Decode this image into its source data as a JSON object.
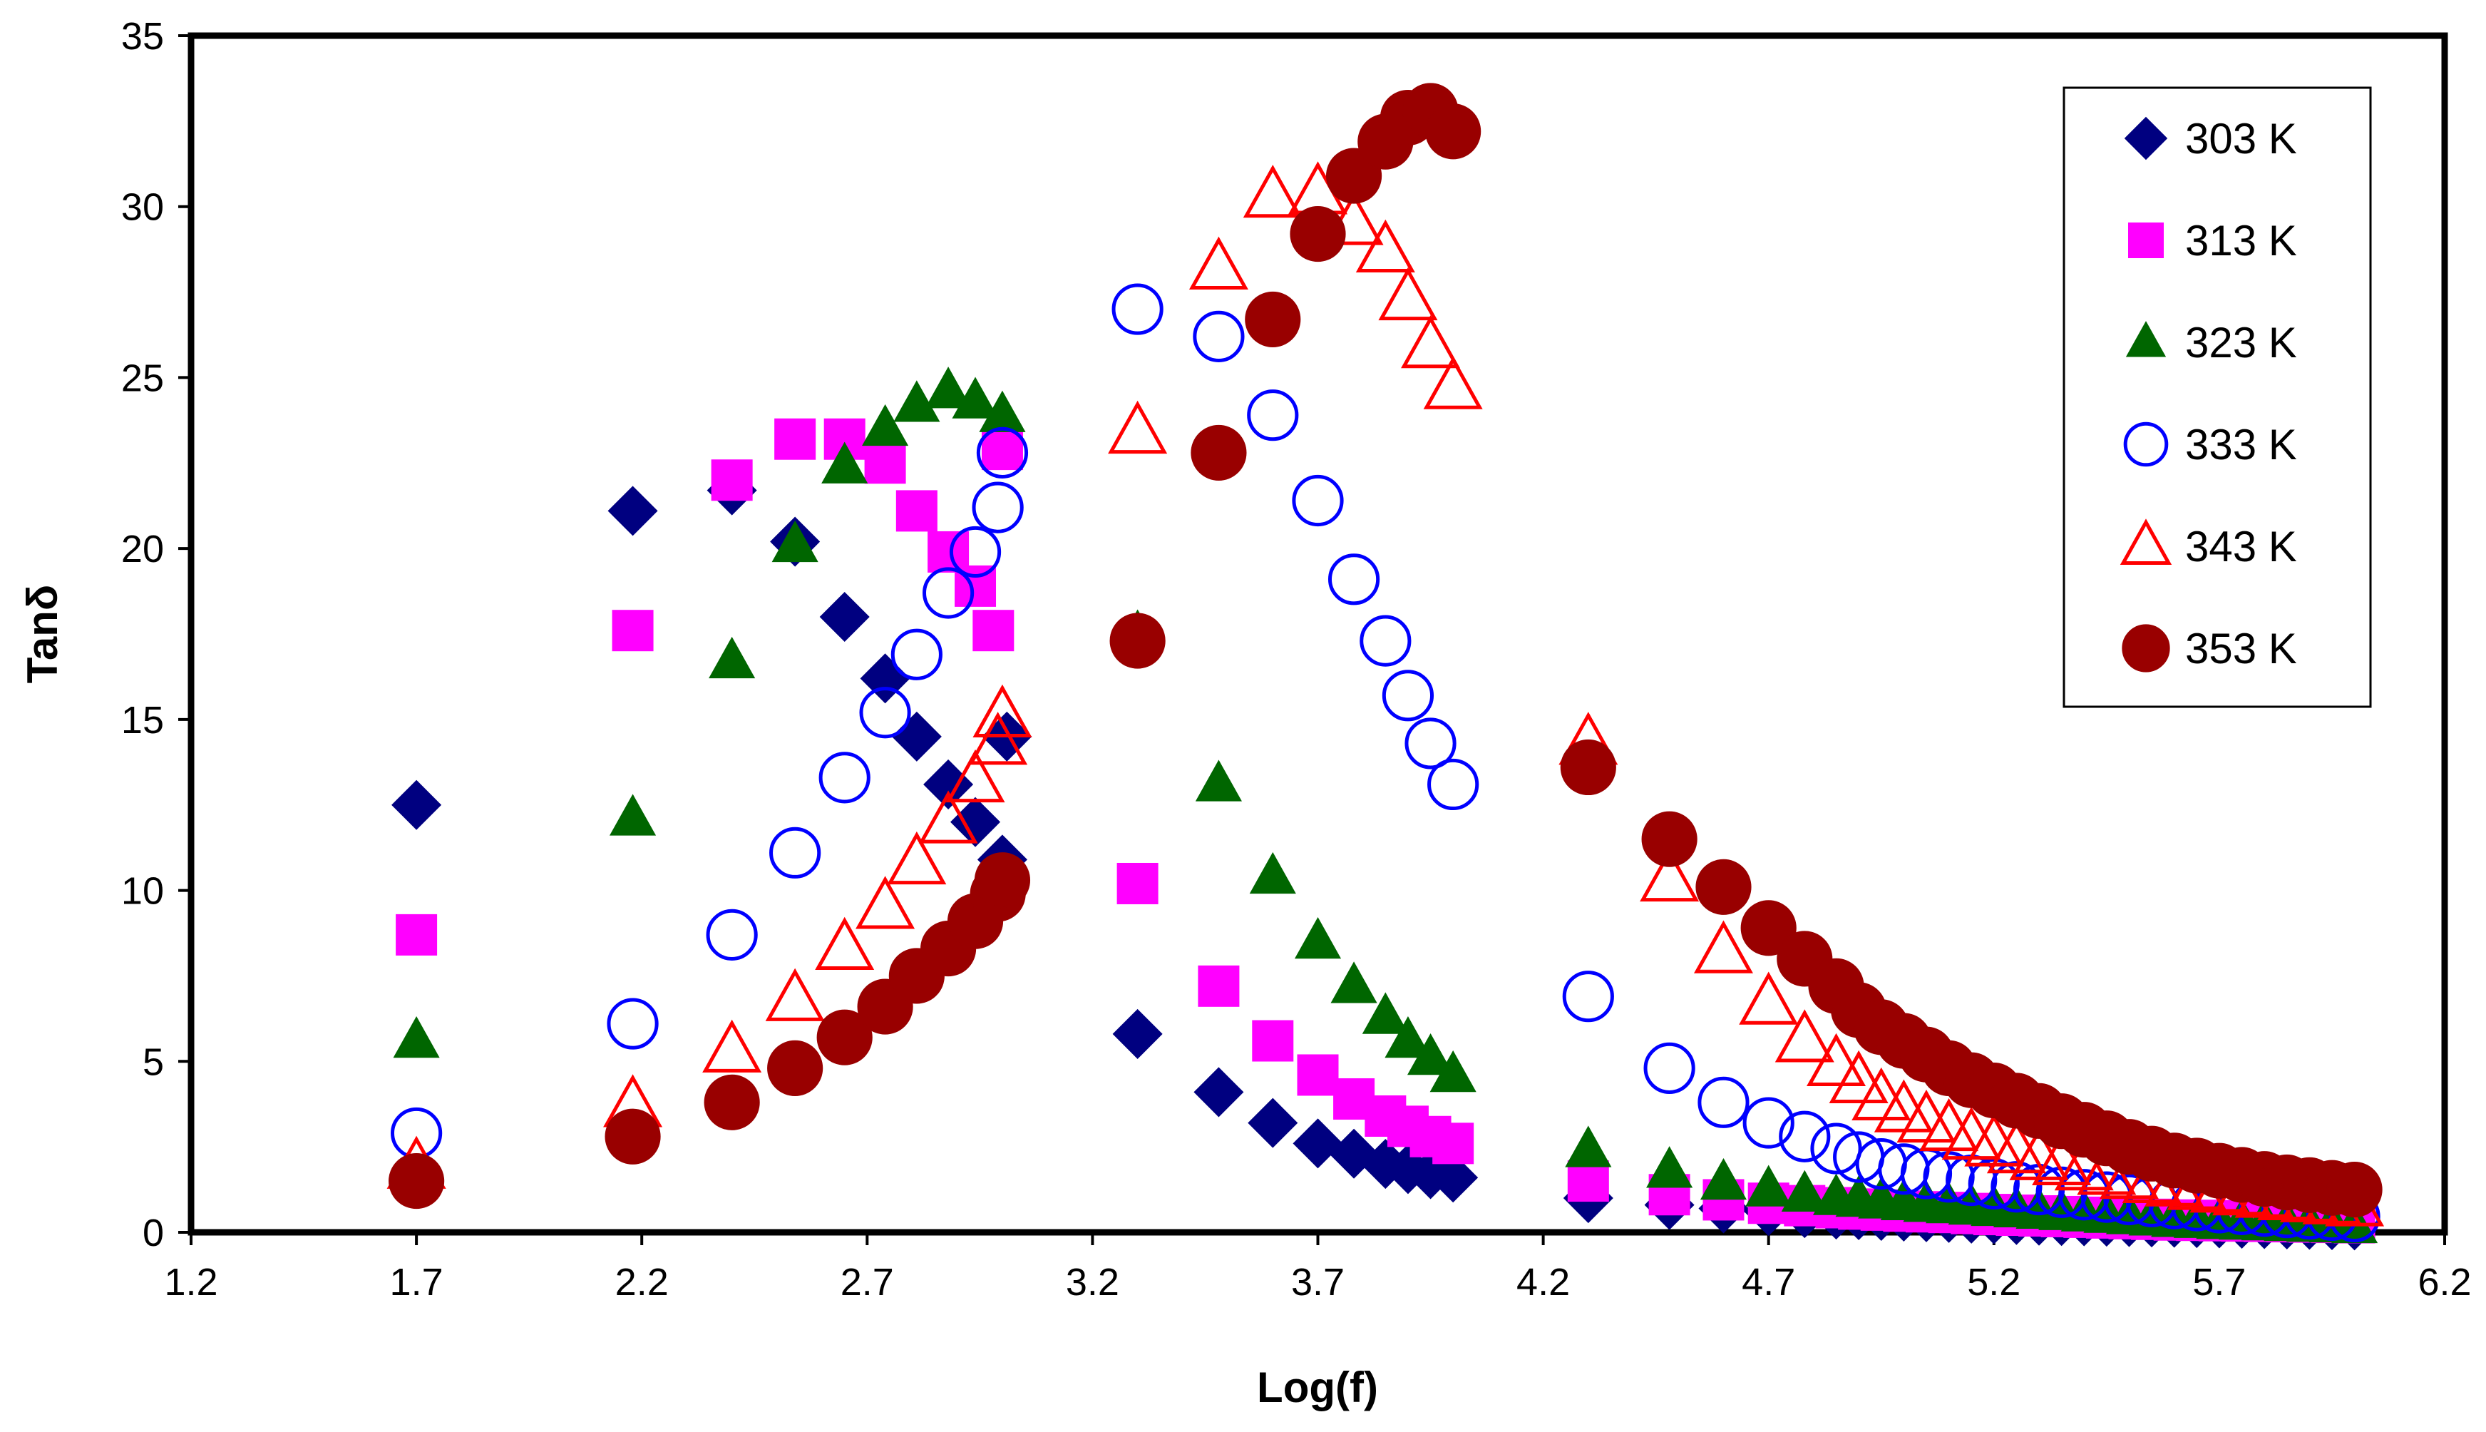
{
  "chart_data": {
    "type": "scatter",
    "title": "",
    "xlabel": "Log(f)",
    "ylabel": "Tanδ",
    "xlim": [
      1.2,
      6.2
    ],
    "ylim": [
      0,
      35
    ],
    "xticks": [
      "1.2",
      "1.7",
      "2.2",
      "2.7",
      "3.2",
      "3.7",
      "4.2",
      "4.7",
      "5.2",
      "5.7",
      "6.2"
    ],
    "yticks": [
      "0",
      "5",
      "10",
      "15",
      "20",
      "25",
      "30",
      "35"
    ],
    "grid": false,
    "legend_position": "top-right",
    "series": [
      {
        "name": "303 K",
        "marker": "diamond",
        "filled": true,
        "color": "#000080",
        "points": [
          [
            1.7,
            12.5
          ],
          [
            2.18,
            21.1
          ],
          [
            2.4,
            21.7
          ],
          [
            2.54,
            20.2
          ],
          [
            2.65,
            18.0
          ],
          [
            2.74,
            16.2
          ],
          [
            2.81,
            14.5
          ],
          [
            2.88,
            13.1
          ],
          [
            2.94,
            12.0
          ],
          [
            3.0,
            10.9
          ],
          [
            3.01,
            14.5
          ],
          [
            3.3,
            5.8
          ],
          [
            3.48,
            4.1
          ],
          [
            3.6,
            3.2
          ],
          [
            3.7,
            2.6
          ],
          [
            3.78,
            2.3
          ],
          [
            3.85,
            2.0
          ],
          [
            3.9,
            1.85
          ],
          [
            3.95,
            1.7
          ],
          [
            4.0,
            1.6
          ],
          [
            4.3,
            1.0
          ],
          [
            4.48,
            0.8
          ],
          [
            4.6,
            0.7
          ],
          [
            4.7,
            0.62
          ],
          [
            4.78,
            0.56
          ],
          [
            4.85,
            0.52
          ],
          [
            4.9,
            0.5
          ],
          [
            4.95,
            0.48
          ],
          [
            5.0,
            0.46
          ],
          [
            5.05,
            0.44
          ],
          [
            5.1,
            0.42
          ],
          [
            5.15,
            0.4
          ],
          [
            5.2,
            0.38
          ],
          [
            5.25,
            0.36
          ],
          [
            5.3,
            0.34
          ],
          [
            5.35,
            0.33
          ],
          [
            5.4,
            0.32
          ],
          [
            5.45,
            0.31
          ],
          [
            5.5,
            0.3
          ],
          [
            5.55,
            0.29
          ],
          [
            5.6,
            0.28
          ],
          [
            5.65,
            0.27
          ],
          [
            5.7,
            0.26
          ],
          [
            5.75,
            0.25
          ],
          [
            5.8,
            0.24
          ],
          [
            5.85,
            0.23
          ],
          [
            5.9,
            0.22
          ],
          [
            5.95,
            0.21
          ],
          [
            6.0,
            0.2
          ]
        ]
      },
      {
        "name": "313 K",
        "marker": "square",
        "filled": true,
        "color": "#ff00ff",
        "points": [
          [
            1.7,
            8.7
          ],
          [
            2.18,
            17.6
          ],
          [
            2.4,
            22.0
          ],
          [
            2.54,
            23.2
          ],
          [
            2.65,
            23.2
          ],
          [
            2.74,
            22.5
          ],
          [
            2.81,
            21.1
          ],
          [
            2.88,
            19.9
          ],
          [
            2.94,
            18.9
          ],
          [
            2.98,
            17.6
          ],
          [
            3.0,
            22.9
          ],
          [
            3.3,
            10.2
          ],
          [
            3.48,
            7.2
          ],
          [
            3.6,
            5.6
          ],
          [
            3.7,
            4.6
          ],
          [
            3.78,
            3.9
          ],
          [
            3.85,
            3.4
          ],
          [
            3.9,
            3.1
          ],
          [
            3.95,
            2.8
          ],
          [
            4.0,
            2.6
          ],
          [
            4.3,
            1.5
          ],
          [
            4.48,
            1.1
          ],
          [
            4.6,
            0.95
          ],
          [
            4.7,
            0.85
          ],
          [
            4.78,
            0.78
          ],
          [
            4.85,
            0.72
          ],
          [
            4.9,
            0.68
          ],
          [
            4.95,
            0.65
          ],
          [
            5.0,
            0.62
          ],
          [
            5.05,
            0.6
          ],
          [
            5.1,
            0.58
          ],
          [
            5.15,
            0.55
          ],
          [
            5.2,
            0.52
          ],
          [
            5.25,
            0.5
          ],
          [
            5.3,
            0.48
          ],
          [
            5.35,
            0.46
          ],
          [
            5.4,
            0.44
          ],
          [
            5.45,
            0.42
          ],
          [
            5.5,
            0.4
          ],
          [
            5.55,
            0.38
          ],
          [
            5.6,
            0.36
          ],
          [
            5.65,
            0.35
          ],
          [
            5.7,
            0.34
          ],
          [
            5.75,
            0.33
          ],
          [
            5.8,
            0.32
          ],
          [
            5.85,
            0.31
          ],
          [
            5.9,
            0.3
          ],
          [
            5.95,
            0.29
          ],
          [
            6.0,
            0.28
          ]
        ]
      },
      {
        "name": "323 K",
        "marker": "triangle",
        "filled": true,
        "color": "#006600",
        "points": [
          [
            1.7,
            5.6
          ],
          [
            2.18,
            12.1
          ],
          [
            2.4,
            16.7
          ],
          [
            2.54,
            20.1
          ],
          [
            2.65,
            22.4
          ],
          [
            2.74,
            23.5
          ],
          [
            2.81,
            24.2
          ],
          [
            2.88,
            24.6
          ],
          [
            2.94,
            24.3
          ],
          [
            3.0,
            23.9
          ],
          [
            3.3,
            17.5
          ],
          [
            3.48,
            13.1
          ],
          [
            3.6,
            10.4
          ],
          [
            3.7,
            8.5
          ],
          [
            3.78,
            7.2
          ],
          [
            3.85,
            6.3
          ],
          [
            3.9,
            5.6
          ],
          [
            3.95,
            5.1
          ],
          [
            4.0,
            4.6
          ],
          [
            4.3,
            2.4
          ],
          [
            4.48,
            1.8
          ],
          [
            4.6,
            1.45
          ],
          [
            4.7,
            1.25
          ],
          [
            4.78,
            1.1
          ],
          [
            4.85,
            1.0
          ],
          [
            4.9,
            0.95
          ],
          [
            4.95,
            0.9
          ],
          [
            5.0,
            0.85
          ],
          [
            5.05,
            0.8
          ],
          [
            5.1,
            0.76
          ],
          [
            5.15,
            0.72
          ],
          [
            5.2,
            0.68
          ],
          [
            5.25,
            0.64
          ],
          [
            5.3,
            0.6
          ],
          [
            5.35,
            0.56
          ],
          [
            5.4,
            0.52
          ],
          [
            5.45,
            0.48
          ],
          [
            5.5,
            0.44
          ],
          [
            5.55,
            0.4
          ],
          [
            5.6,
            0.36
          ],
          [
            5.65,
            0.33
          ],
          [
            5.7,
            0.3
          ],
          [
            5.75,
            0.28
          ],
          [
            5.8,
            0.26
          ],
          [
            5.85,
            0.24
          ],
          [
            5.9,
            0.22
          ],
          [
            5.95,
            0.2
          ],
          [
            6.0,
            0.18
          ]
        ]
      },
      {
        "name": "333 K",
        "marker": "circle",
        "filled": false,
        "color": "#0000ff",
        "points": [
          [
            1.7,
            2.9
          ],
          [
            2.18,
            6.1
          ],
          [
            2.4,
            8.7
          ],
          [
            2.54,
            11.1
          ],
          [
            2.65,
            13.3
          ],
          [
            2.74,
            15.2
          ],
          [
            2.81,
            16.9
          ],
          [
            2.88,
            18.7
          ],
          [
            2.94,
            19.9
          ],
          [
            2.99,
            21.2
          ],
          [
            3.0,
            22.8
          ],
          [
            3.3,
            27.0
          ],
          [
            3.48,
            26.2
          ],
          [
            3.6,
            23.9
          ],
          [
            3.7,
            21.4
          ],
          [
            3.78,
            19.1
          ],
          [
            3.85,
            17.3
          ],
          [
            3.9,
            15.7
          ],
          [
            3.95,
            14.3
          ],
          [
            4.0,
            13.1
          ],
          [
            4.3,
            6.9
          ],
          [
            4.48,
            4.8
          ],
          [
            4.6,
            3.8
          ],
          [
            4.7,
            3.2
          ],
          [
            4.78,
            2.8
          ],
          [
            4.85,
            2.45
          ],
          [
            4.9,
            2.2
          ],
          [
            4.95,
            2.0
          ],
          [
            5.0,
            1.85
          ],
          [
            5.05,
            1.72
          ],
          [
            5.1,
            1.62
          ],
          [
            5.15,
            1.52
          ],
          [
            5.2,
            1.42
          ],
          [
            5.25,
            1.33
          ],
          [
            5.3,
            1.25
          ],
          [
            5.35,
            1.17
          ],
          [
            5.4,
            1.1
          ],
          [
            5.45,
            1.03
          ],
          [
            5.5,
            0.96
          ],
          [
            5.55,
            0.9
          ],
          [
            5.6,
            0.84
          ],
          [
            5.65,
            0.78
          ],
          [
            5.7,
            0.72
          ],
          [
            5.75,
            0.67
          ],
          [
            5.8,
            0.62
          ],
          [
            5.85,
            0.58
          ],
          [
            5.9,
            0.54
          ],
          [
            5.95,
            0.5
          ],
          [
            6.0,
            0.46
          ]
        ]
      },
      {
        "name": "343 K",
        "marker": "triangle",
        "filled": false,
        "color": "#ff0000",
        "points": [
          [
            1.7,
            1.9
          ],
          [
            2.18,
            3.7
          ],
          [
            2.4,
            5.3
          ],
          [
            2.54,
            6.8
          ],
          [
            2.65,
            8.3
          ],
          [
            2.74,
            9.5
          ],
          [
            2.81,
            10.8
          ],
          [
            2.88,
            12.0
          ],
          [
            2.94,
            13.2
          ],
          [
            2.99,
            14.3
          ],
          [
            3.0,
            15.1
          ],
          [
            3.3,
            23.4
          ],
          [
            3.48,
            28.2
          ],
          [
            3.6,
            30.3
          ],
          [
            3.7,
            30.4
          ],
          [
            3.78,
            29.5
          ],
          [
            3.85,
            28.7
          ],
          [
            3.9,
            27.3
          ],
          [
            3.95,
            25.9
          ],
          [
            4.0,
            24.7
          ],
          [
            4.3,
            14.3
          ],
          [
            4.48,
            10.3
          ],
          [
            4.6,
            8.2
          ],
          [
            4.7,
            6.7
          ],
          [
            4.78,
            5.6
          ],
          [
            4.85,
            4.9
          ],
          [
            4.9,
            4.4
          ],
          [
            4.95,
            3.9
          ],
          [
            5.0,
            3.55
          ],
          [
            5.05,
            3.25
          ],
          [
            5.1,
            3.0
          ],
          [
            5.15,
            2.75
          ],
          [
            5.2,
            2.55
          ],
          [
            5.25,
            2.35
          ],
          [
            5.3,
            2.15
          ],
          [
            5.35,
            2.0
          ],
          [
            5.4,
            1.85
          ],
          [
            5.45,
            1.72
          ],
          [
            5.5,
            1.6
          ],
          [
            5.55,
            1.48
          ],
          [
            5.6,
            1.38
          ],
          [
            5.65,
            1.28
          ],
          [
            5.7,
            1.2
          ],
          [
            5.75,
            1.12
          ],
          [
            5.8,
            1.05
          ],
          [
            5.85,
            0.98
          ],
          [
            5.9,
            0.92
          ],
          [
            5.95,
            0.86
          ],
          [
            6.0,
            0.8
          ]
        ]
      },
      {
        "name": "353 K",
        "marker": "circle",
        "filled": true,
        "color": "#990000",
        "points": [
          [
            1.7,
            1.5
          ],
          [
            2.18,
            2.8
          ],
          [
            2.4,
            3.8
          ],
          [
            2.54,
            4.8
          ],
          [
            2.65,
            5.7
          ],
          [
            2.74,
            6.6
          ],
          [
            2.81,
            7.5
          ],
          [
            2.88,
            8.3
          ],
          [
            2.94,
            9.1
          ],
          [
            2.99,
            9.9
          ],
          [
            3.0,
            10.3
          ],
          [
            3.3,
            17.3
          ],
          [
            3.48,
            22.8
          ],
          [
            3.6,
            26.7
          ],
          [
            3.7,
            29.2
          ],
          [
            3.78,
            30.9
          ],
          [
            3.85,
            31.9
          ],
          [
            3.9,
            32.6
          ],
          [
            3.95,
            32.8
          ],
          [
            4.0,
            32.2
          ],
          [
            4.3,
            13.6
          ],
          [
            4.48,
            11.5
          ],
          [
            4.6,
            10.1
          ],
          [
            4.7,
            8.9
          ],
          [
            4.78,
            8.0
          ],
          [
            4.85,
            7.2
          ],
          [
            4.9,
            6.5
          ],
          [
            4.95,
            6.0
          ],
          [
            5.0,
            5.6
          ],
          [
            5.05,
            5.2
          ],
          [
            5.1,
            4.8
          ],
          [
            5.15,
            4.45
          ],
          [
            5.2,
            4.15
          ],
          [
            5.25,
            3.85
          ],
          [
            5.3,
            3.55
          ],
          [
            5.35,
            3.25
          ],
          [
            5.4,
            3.0
          ],
          [
            5.45,
            2.75
          ],
          [
            5.5,
            2.5
          ],
          [
            5.55,
            2.3
          ],
          [
            5.6,
            2.1
          ],
          [
            5.65,
            1.95
          ],
          [
            5.7,
            1.8
          ],
          [
            5.75,
            1.68
          ],
          [
            5.8,
            1.56
          ],
          [
            5.85,
            1.46
          ],
          [
            5.9,
            1.38
          ],
          [
            5.95,
            1.3
          ],
          [
            6.0,
            1.25
          ]
        ]
      }
    ]
  }
}
